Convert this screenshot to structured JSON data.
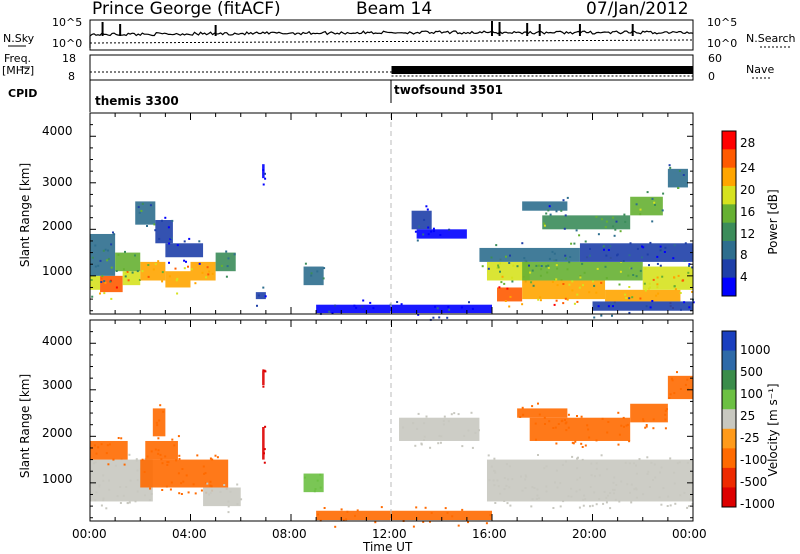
{
  "header": {
    "station": "Prince George (fitACF)",
    "beam": "Beam 14",
    "date": "07/Jan/2012"
  },
  "strips": {
    "nsky_label": "N.Sky",
    "nsearch_label": "N.Search",
    "freq_label_line1": "Freq.",
    "freq_label_line2": "[MHz]",
    "nave_label": "Nave",
    "cpid_label": "CPID",
    "nsky_ticks": [
      "10^5",
      "10^0"
    ],
    "nsearch_ticks": [
      "10^5",
      "10^0"
    ],
    "freq_ticks": [
      "18",
      "8"
    ],
    "nave_ticks": [
      "60",
      "0"
    ],
    "cpid_segments": [
      {
        "name": "themis 3300",
        "start_hour": 0,
        "end_hour": 12
      },
      {
        "name": "twofsound 3501",
        "start_hour": 12,
        "end_hour": 24
      }
    ]
  },
  "colors": {
    "power_scale": [
      "#0000ff",
      "#1e3fa8",
      "#2e6e8e",
      "#3b8c5a",
      "#66b032",
      "#d6e21f",
      "#ffa500",
      "#ff5a00",
      "#ff0000"
    ],
    "velocity_scale": [
      "#1a3fbf",
      "#2e6aa8",
      "#3a8c4a",
      "#6cc043",
      "#c8c8c0",
      "#ff9a1a",
      "#ff6a00",
      "#ee2a00",
      "#dd0000"
    ]
  },
  "chart_data": [
    {
      "type": "heatmap",
      "panel": "power",
      "ylabel": "Slant Range [km]",
      "xlabel": "",
      "ylim": [
        180,
        4500
      ],
      "xlim": [
        0,
        24
      ],
      "y_ticks": [
        "1000",
        "2000",
        "3000",
        "4000"
      ],
      "colorbar_label": "Power [dB]",
      "colorbar_ticks": [
        "4",
        "8",
        "12",
        "16",
        "20",
        "24",
        "28"
      ],
      "cells": [
        {
          "t0": 0.0,
          "t1": 0.4,
          "r0": 700,
          "r1": 1000,
          "v": 20
        },
        {
          "t0": 0.4,
          "t1": 1.3,
          "r0": 650,
          "r1": 1000,
          "v": 28
        },
        {
          "t0": 1.3,
          "t1": 2.0,
          "r0": 800,
          "r1": 1100,
          "v": 22
        },
        {
          "t0": 2.0,
          "t1": 3.0,
          "r0": 900,
          "r1": 1300,
          "v": 24
        },
        {
          "t0": 3.0,
          "t1": 4.0,
          "r0": 750,
          "r1": 1100,
          "v": 26
        },
        {
          "t0": 4.0,
          "t1": 5.0,
          "r0": 900,
          "r1": 1300,
          "v": 24
        },
        {
          "t0": 5.0,
          "t1": 5.8,
          "r0": 1100,
          "r1": 1500,
          "v": 14
        },
        {
          "t0": 0.0,
          "t1": 1.0,
          "r0": 1000,
          "r1": 1900,
          "v": 12
        },
        {
          "t0": 1.0,
          "t1": 2.0,
          "r0": 1100,
          "r1": 1500,
          "v": 16
        },
        {
          "t0": 1.8,
          "t1": 2.6,
          "r0": 2100,
          "r1": 2600,
          "v": 12
        },
        {
          "t0": 2.6,
          "t1": 3.3,
          "r0": 1700,
          "r1": 2200,
          "v": 8
        },
        {
          "t0": 3.0,
          "t1": 4.5,
          "r0": 1400,
          "r1": 1700,
          "v": 6
        },
        {
          "t0": 8.5,
          "t1": 9.3,
          "r0": 800,
          "r1": 1200,
          "v": 10
        },
        {
          "t0": 6.6,
          "t1": 7.0,
          "r0": 500,
          "r1": 650,
          "v": 6
        },
        {
          "t0": 6.85,
          "t1": 6.95,
          "r0": 3100,
          "r1": 3400,
          "v": 4
        },
        {
          "t0": 12.8,
          "t1": 13.6,
          "r0": 2000,
          "r1": 2400,
          "v": 6
        },
        {
          "t0": 15.8,
          "t1": 17.5,
          "r0": 900,
          "r1": 1300,
          "v": 20
        },
        {
          "t0": 16.2,
          "t1": 17.2,
          "r0": 450,
          "r1": 750,
          "v": 28
        },
        {
          "t0": 17.2,
          "t1": 20.5,
          "r0": 500,
          "r1": 900,
          "v": 26
        },
        {
          "t0": 20.5,
          "t1": 23.5,
          "r0": 450,
          "r1": 700,
          "v": 24
        },
        {
          "t0": 17.2,
          "t1": 22.0,
          "r0": 900,
          "r1": 1300,
          "v": 18
        },
        {
          "t0": 22.0,
          "t1": 24.0,
          "r0": 700,
          "r1": 1200,
          "v": 22
        },
        {
          "t0": 15.5,
          "t1": 19.5,
          "r0": 1300,
          "r1": 1600,
          "v": 12
        },
        {
          "t0": 19.5,
          "t1": 24.0,
          "r0": 1300,
          "r1": 1700,
          "v": 8
        },
        {
          "t0": 18.0,
          "t1": 21.5,
          "r0": 2000,
          "r1": 2300,
          "v": 14
        },
        {
          "t0": 17.2,
          "t1": 19.0,
          "r0": 2400,
          "r1": 2600,
          "v": 10
        },
        {
          "t0": 21.5,
          "t1": 22.8,
          "r0": 2300,
          "r1": 2700,
          "v": 16
        },
        {
          "t0": 23.0,
          "t1": 23.8,
          "r0": 2900,
          "r1": 3300,
          "v": 12
        },
        {
          "t0": 13.0,
          "t1": 15.0,
          "r0": 1800,
          "r1": 2000,
          "v": 4
        },
        {
          "t0": 20.0,
          "t1": 24.0,
          "r0": 250,
          "r1": 450,
          "v": 6
        },
        {
          "t0": 9.0,
          "t1": 16.0,
          "r0": 200,
          "r1": 380,
          "v": 5
        }
      ]
    },
    {
      "type": "heatmap",
      "panel": "velocity",
      "ylabel": "Slant Range [km]",
      "xlabel": "Time UT",
      "ylim": [
        180,
        4500
      ],
      "xlim": [
        0,
        24
      ],
      "y_ticks": [
        "1000",
        "2000",
        "3000",
        "4000"
      ],
      "x_ticks": [
        "00:00",
        "04:00",
        "08:00",
        "12:00",
        "16:00",
        "20:00",
        "00:00"
      ],
      "colorbar_label": "Velocity [m s⁻¹]",
      "colorbar_ticks": [
        "1000",
        "500",
        "100",
        "25",
        "-25",
        "-100",
        "-500",
        "-1000"
      ],
      "cells": [
        {
          "t0": 0.0,
          "t1": 2.5,
          "r0": 600,
          "r1": 1500,
          "v": 0
        },
        {
          "t0": 0.0,
          "t1": 1.5,
          "r0": 1500,
          "r1": 1900,
          "v": -300
        },
        {
          "t0": 2.0,
          "t1": 5.5,
          "r0": 900,
          "r1": 1500,
          "v": -300
        },
        {
          "t0": 2.2,
          "t1": 3.5,
          "r0": 1500,
          "r1": 1900,
          "v": -200
        },
        {
          "t0": 2.5,
          "t1": 3.0,
          "r0": 2000,
          "r1": 2600,
          "v": -150
        },
        {
          "t0": 4.5,
          "t1": 6.0,
          "r0": 500,
          "r1": 900,
          "v": 0
        },
        {
          "t0": 8.5,
          "t1": 9.3,
          "r0": 800,
          "r1": 1200,
          "v": 80
        },
        {
          "t0": 6.85,
          "t1": 6.95,
          "r0": 3100,
          "r1": 3400,
          "v": -900
        },
        {
          "t0": 6.85,
          "t1": 6.95,
          "r0": 1500,
          "r1": 2200,
          "v": -800
        },
        {
          "t0": 12.3,
          "t1": 15.5,
          "r0": 1900,
          "r1": 2400,
          "v": 0
        },
        {
          "t0": 15.8,
          "t1": 24.0,
          "r0": 600,
          "r1": 1500,
          "v": 0
        },
        {
          "t0": 17.5,
          "t1": 21.5,
          "r0": 1900,
          "r1": 2400,
          "v": -300
        },
        {
          "t0": 21.5,
          "t1": 23.0,
          "r0": 2300,
          "r1": 2700,
          "v": -250
        },
        {
          "t0": 23.0,
          "t1": 24.0,
          "r0": 2800,
          "r1": 3300,
          "v": -300
        },
        {
          "t0": 17.0,
          "t1": 19.0,
          "r0": 2400,
          "r1": 2600,
          "v": -200
        },
        {
          "t0": 9.0,
          "t1": 16.0,
          "r0": 200,
          "r1": 400,
          "v": -150
        }
      ]
    }
  ]
}
